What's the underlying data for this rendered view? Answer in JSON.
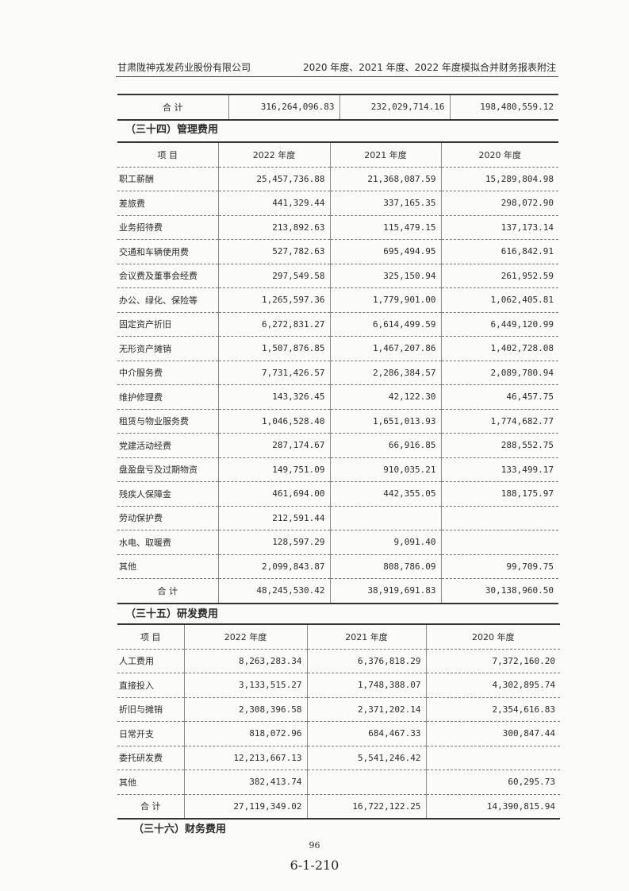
{
  "header": {
    "company": "甘肃陇神戎发药业股份有限公司",
    "report": "2020 年度、2021 年度、2022 年度模拟合并财务报表附注"
  },
  "prev_total": {
    "label": "合  计",
    "values": [
      "316,264,096.83",
      "232,029,714.16",
      "198,480,559.12"
    ]
  },
  "admin": {
    "title": "（三十四）管理费用",
    "columns": [
      "项  目",
      "2022 年度",
      "2021 年度",
      "2020 年度"
    ],
    "rows": [
      [
        "职工薪酬",
        "25,457,736.88",
        "21,368,087.59",
        "15,289,804.98"
      ],
      [
        "差旅费",
        "441,329.44",
        "337,165.35",
        "298,072.90"
      ],
      [
        "业务招待费",
        "213,892.63",
        "115,479.15",
        "137,173.14"
      ],
      [
        "交通和车辆使用费",
        "527,782.63",
        "695,494.95",
        "616,842.91"
      ],
      [
        "会议费及董事会经费",
        "297,549.58",
        "325,150.94",
        "261,952.59"
      ],
      [
        "办公、绿化、保险等",
        "1,265,597.36",
        "1,779,901.00",
        "1,062,405.81"
      ],
      [
        "固定资产折旧",
        "6,272,831.27",
        "6,614,499.59",
        "6,449,120.99"
      ],
      [
        "无形资产摊销",
        "1,507,876.85",
        "1,467,207.86",
        "1,402,728.08"
      ],
      [
        "中介服务费",
        "7,731,426.57",
        "2,286,384.57",
        "2,089,780.94"
      ],
      [
        "维护修理费",
        "143,326.45",
        "42,122.30",
        "46,457.75"
      ],
      [
        "租赁与物业服务费",
        "1,046,528.40",
        "1,651,013.93",
        "1,774,682.77"
      ],
      [
        "党建活动经费",
        "287,174.67",
        "66,916.85",
        "288,552.75"
      ],
      [
        "盘盈盘亏及过期物资",
        "149,751.09",
        "910,035.21",
        "133,499.17"
      ],
      [
        "残疾人保障金",
        "461,694.00",
        "442,355.05",
        "188,175.97"
      ],
      [
        "劳动保护费",
        "212,591.44",
        "",
        ""
      ],
      [
        "水电、取暖费",
        "128,597.29",
        "9,091.40",
        ""
      ],
      [
        "其他",
        "2,099,843.87",
        "808,786.09",
        "99,709.75"
      ]
    ],
    "total": [
      "合  计",
      "48,245,530.42",
      "38,919,691.83",
      "30,138,960.50"
    ]
  },
  "rnd": {
    "title": "（三十五）研发费用",
    "columns": [
      "项  目",
      "2022 年度",
      "2021 年度",
      "2020 年度"
    ],
    "rows": [
      [
        "人工费用",
        "8,263,283.34",
        "6,376,818.29",
        "7,372,160.20"
      ],
      [
        "直接投入",
        "3,133,515.27",
        "1,748,388.07",
        "4,302,895.74"
      ],
      [
        "折旧与摊销",
        "2,308,396.58",
        "2,371,202.14",
        "2,354,616.83"
      ],
      [
        "日常开支",
        "818,072.96",
        "684,467.33",
        "300,847.44"
      ],
      [
        "委托研发费",
        "12,213,667.13",
        "5,541,246.42",
        ""
      ],
      [
        "其他",
        "382,413.74",
        "",
        "60,295.73"
      ]
    ],
    "total": [
      "合  计",
      "27,119,349.02",
      "16,722,122.25",
      "14,390,815.94"
    ]
  },
  "next_title": "（三十六）财务费用",
  "footer": {
    "page": "96",
    "code": "6-1-210"
  }
}
